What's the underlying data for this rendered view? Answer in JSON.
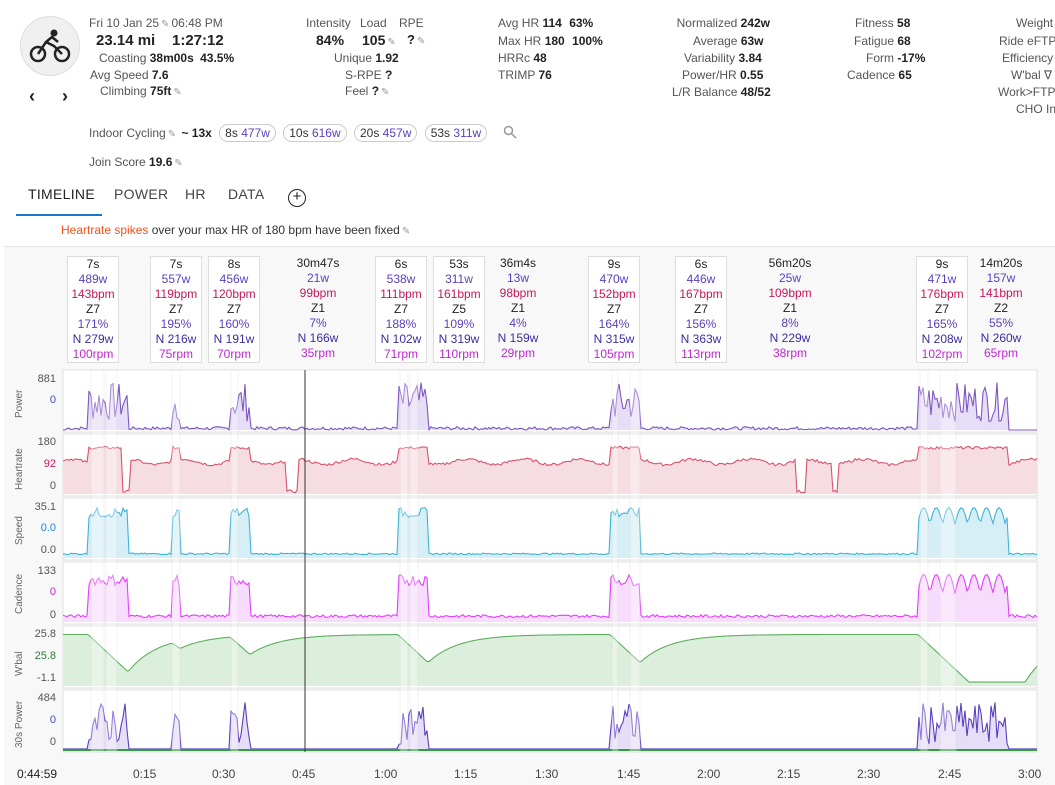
{
  "activity": {
    "datetime": "Fri 10 Jan 25",
    "time": "06:48 PM",
    "distance": "23.14 mi",
    "duration": "1:27:12",
    "coasting_label": "Coasting",
    "coasting_value": "38m00s",
    "coasting_pct": "43.5%",
    "avg_speed_label": "Avg Speed",
    "avg_speed_value": "7.6",
    "climbing_label": "Climbing",
    "climbing_value": "75ft",
    "icon": "cycling-icon"
  },
  "load": {
    "intensity_label": "Intensity",
    "intensity_value": "84%",
    "load_label": "Load",
    "load_value": "105",
    "rpe_label": "RPE",
    "rpe_value": "?",
    "unique_label": "Unique",
    "unique_value": "1.92",
    "srpe_label": "S-RPE",
    "srpe_value": "?",
    "feel_label": "Feel",
    "feel_value": "?"
  },
  "hr": {
    "avg_label": "Avg HR",
    "avg_value": "114",
    "avg_pct": "63%",
    "max_label": "Max HR",
    "max_value": "180",
    "max_pct": "100%",
    "hrrc_label": "HRRc",
    "hrrc_value": "48",
    "trimp_label": "TRIMP",
    "trimp_value": "76"
  },
  "power": {
    "normalized_label": "Normalized",
    "normalized_value": "242w",
    "average_label": "Average",
    "average_value": "63w",
    "variability_label": "Variability",
    "variability_value": "3.84",
    "powerhr_label": "Power/HR",
    "powerhr_value": "0.55",
    "lr_label": "L/R Balance",
    "lr_value": "48/52"
  },
  "fitness": {
    "fitness_label": "Fitness",
    "fitness_value": "58",
    "fatigue_label": "Fatigue",
    "fatigue_value": "68",
    "form_label": "Form",
    "form_value": "-17%",
    "cadence_label": "Cadence",
    "cadence_value": "65"
  },
  "right_col": [
    "Weight",
    "Ride eFTP",
    "Efficiency",
    "W'bal ∇",
    "Work>FTP",
    "CHO In"
  ],
  "type_row": {
    "type": "Indoor Cycling",
    "repeat": "~ 13x",
    "pills": [
      {
        "dur": "8s",
        "watts": "477w"
      },
      {
        "dur": "10s",
        "watts": "616w"
      },
      {
        "dur": "20s",
        "watts": "457w"
      },
      {
        "dur": "53s",
        "watts": "311w"
      }
    ]
  },
  "join_score_label": "Join Score",
  "join_score_value": "19.6",
  "tabs": [
    "TIMELINE",
    "POWER",
    "HR",
    "DATA"
  ],
  "notice": {
    "highlight": "Heartrate spikes",
    "text": " over your max HR of 180 bpm have been fixed"
  },
  "intervals": [
    {
      "d": "7s",
      "p": "489w",
      "h": "143bpm",
      "z": "Z7",
      "pc": "171%",
      "n": "N 279w",
      "c": "100rpm",
      "box": true
    },
    {
      "d": "7s",
      "p": "557w",
      "h": "119bpm",
      "z": "Z7",
      "pc": "195%",
      "n": "N 216w",
      "c": "75rpm",
      "box": true
    },
    {
      "d": "8s",
      "p": "456w",
      "h": "120bpm",
      "z": "Z7",
      "pc": "160%",
      "n": "N 191w",
      "c": "70rpm",
      "box": true
    },
    {
      "d": "30m47s",
      "p": "21w",
      "h": "99bpm",
      "z": "Z1",
      "pc": "7%",
      "n": "N 166w",
      "c": "35rpm",
      "box": false
    },
    {
      "d": "6s",
      "p": "538w",
      "h": "111bpm",
      "z": "Z7",
      "pc": "188%",
      "n": "N 102w",
      "c": "71rpm",
      "box": true
    },
    {
      "d": "53s",
      "p": "311w",
      "h": "161bpm",
      "z": "Z5",
      "pc": "109%",
      "n": "N 319w",
      "c": "110rpm",
      "box": true
    },
    {
      "d": "36m4s",
      "p": "13w",
      "h": "98bpm",
      "z": "Z1",
      "pc": "4%",
      "n": "N 159w",
      "c": "29rpm",
      "box": false
    },
    {
      "d": "9s",
      "p": "470w",
      "h": "152bpm",
      "z": "Z7",
      "pc": "164%",
      "n": "N 315w",
      "c": "105rpm",
      "box": true
    },
    {
      "d": "6s",
      "p": "446w",
      "h": "167bpm",
      "z": "Z7",
      "pc": "156%",
      "n": "N 363w",
      "c": "113rpm",
      "box": true
    },
    {
      "d": "56m20s",
      "p": "25w",
      "h": "109bpm",
      "z": "Z1",
      "pc": "8%",
      "n": "N 229w",
      "c": "38rpm",
      "box": false
    },
    {
      "d": "9s",
      "p": "471w",
      "h": "176bpm",
      "z": "Z7",
      "pc": "165%",
      "n": "N 208w",
      "c": "102rpm",
      "box": true
    },
    {
      "d": "14m20s",
      "p": "157w",
      "h": "141bpm",
      "z": "Z2",
      "pc": "55%",
      "n": "N 260w",
      "c": "65rpm",
      "box": false
    }
  ],
  "charts": {
    "power": {
      "name": "Power",
      "max": "881",
      "cur": "0",
      "color": "#7e57c2",
      "cur_color": "#3f51b5"
    },
    "heartrate": {
      "name": "Heartrate",
      "max": "180",
      "cur": "92",
      "min": "0",
      "color": "#d9536b",
      "cur_color": "#c2185b"
    },
    "speed": {
      "name": "Speed",
      "max": "35.1",
      "cur": "0.0",
      "min": "0.0",
      "color": "#3fb3d6",
      "cur_color": "#1e88e5"
    },
    "cadence": {
      "name": "Cadence",
      "max": "133",
      "cur": "0",
      "min": "0",
      "color": "#e040fb",
      "cur_color": "#c026d3"
    },
    "wbal": {
      "name": "W'bal",
      "max": "25.8",
      "cur": "25.8",
      "min": "-1.1",
      "color": "#5fae5f",
      "cur_color": "#2e7d32"
    },
    "power30": {
      "name": "30s Power",
      "max": "484",
      "cur": "0",
      "min": "0",
      "color": "#5a3fc0",
      "cur_color": "#3f51b5"
    }
  },
  "cursor_time": "0:44:59",
  "xaxis": [
    "0:15",
    "0:30",
    "0:45",
    "1:00",
    "1:15",
    "1:30",
    "1:45",
    "2:00",
    "2:15",
    "2:30",
    "2:45",
    "3:00"
  ]
}
